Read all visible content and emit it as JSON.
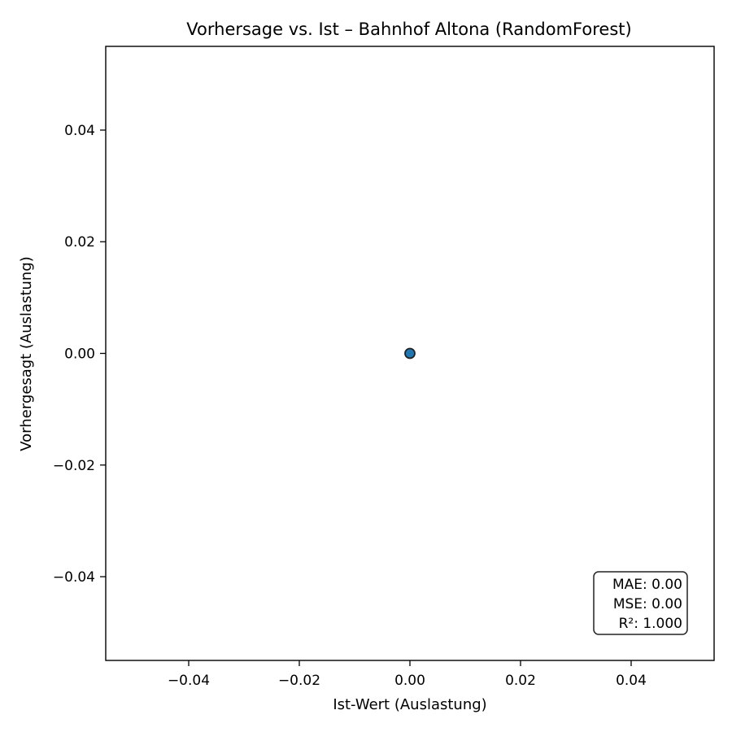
{
  "chart_data": {
    "type": "scatter",
    "title": "Vorhersage vs. Ist – Bahnhof Altona (RandomForest)",
    "xlabel": "Ist-Wert (Auslastung)",
    "ylabel": "Vorhergesagt (Auslastung)",
    "xlim": [
      -0.055,
      0.055
    ],
    "ylim": [
      -0.055,
      0.055
    ],
    "x_ticks": [
      -0.04,
      -0.02,
      0.0,
      0.02,
      0.04
    ],
    "y_ticks": [
      -0.04,
      -0.02,
      0.0,
      0.02,
      0.04
    ],
    "x_tick_labels": [
      "−0.04",
      "−0.02",
      "0.00",
      "0.02",
      "0.04"
    ],
    "y_tick_labels": [
      "−0.04",
      "−0.02",
      "0.00",
      "0.02",
      "0.04"
    ],
    "grid": false,
    "series": [
      {
        "x": [
          0.0
        ],
        "y": [
          0.0
        ],
        "color": "#1f77b4",
        "edge_color": "#222222"
      }
    ],
    "annotation": {
      "lines": [
        "MAE: 0.00",
        "MSE: 0.00",
        "R²: 1.000"
      ],
      "placement": "bottom-right"
    }
  }
}
